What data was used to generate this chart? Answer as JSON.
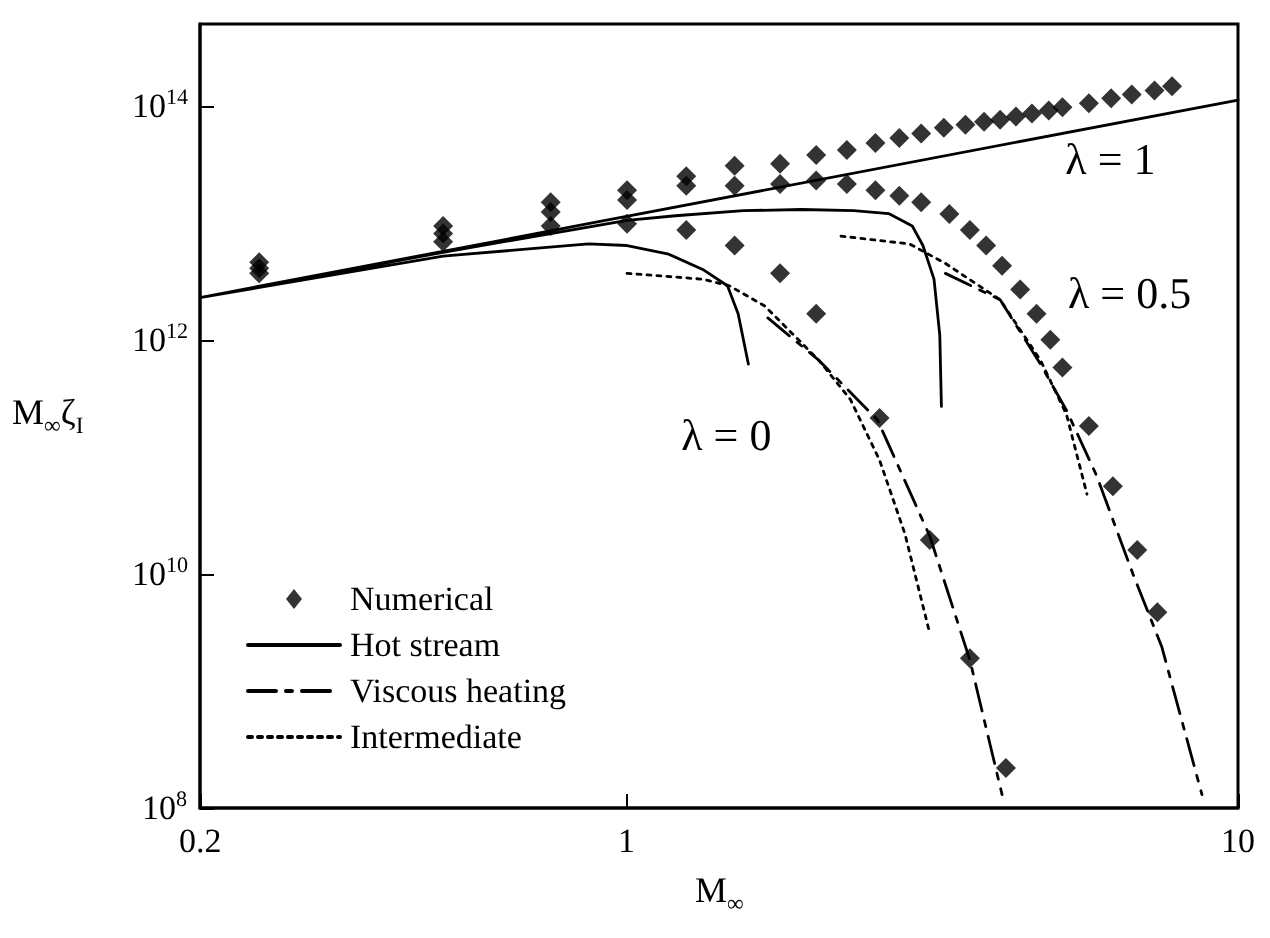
{
  "chart_data": {
    "type": "line",
    "xlabel": "M$_{∞}$",
    "ylabel": "M$_{∞}$ζ$_{I}$",
    "log": "xy",
    "grid": false,
    "legend": "bottom left",
    "xlim": [
      0.2,
      10
    ],
    "xticks": [
      0.2,
      1,
      10
    ],
    "ylim": [
      100000000.0,
      500000000000000.0
    ],
    "yticks": [
      {
        "value": 100000000.0,
        "label": "10$^{8}$"
      },
      {
        "value": 10000000000.0,
        "label": "10$^{10}$"
      },
      {
        "value": 1000000000000.0,
        "label": "10$^{12}$"
      },
      {
        "value": 100000000000000.0,
        "label": "10$^{14}$"
      }
    ],
    "series": [
      {
        "name": "Numerical",
        "type": "scatter",
        "marker": "diamond",
        "color": "#000000",
        "x": [
          0.25,
          0.25,
          0.25,
          0.5,
          0.5,
          0.5,
          0.75,
          0.75,
          0.75,
          1,
          1,
          1,
          1.25,
          1.25,
          1.25,
          1.5,
          1.5,
          1.5,
          1.78,
          2.04,
          2.29,
          2.55,
          2.79,
          3.03,
          3.3,
          3.58,
          3.84,
          4.08,
          4.33,
          4.6,
          4.9,
          5.16,
          5.7,
          6.2,
          6.7,
          7.3,
          7.8,
          1.78,
          2.04,
          2.29,
          2.55,
          2.79,
          3.03,
          3.37,
          3.64,
          3.87,
          4.11,
          4.4,
          4.68,
          4.93,
          5.16,
          5.7,
          6.24,
          6.84,
          7.38,
          1.78,
          2.04,
          2.59,
          3.13,
          3.64,
          4.17
        ],
        "values": [
          4600000000000.0,
          4100000000000.0,
          3700000000000.0,
          9400000000000.0,
          8100000000000.0,
          6900000000000.0,
          15000000000000.0,
          12400000000000.0,
          9400000000000.0,
          19000000000000.0,
          15700000000000.0,
          9800000000000.0,
          25000000000000.0,
          20700000000000.0,
          8700000000000.0,
          30700000000000.0,
          20700000000000.0,
          6400000000000.0,
          32000000000000.0,
          38000000000000.0,
          42000000000000.0,
          48000000000000.0,
          53000000000000.0,
          58000000000000.0,
          65000000000000.0,
          69000000000000.0,
          73000000000000.0,
          76000000000000.0,
          81000000000000.0,
          86000000000000.0,
          91000000000000.0,
          97000000000000.0,
          105000000000000.0,
          116000000000000.0,
          125000000000000.0,
          135000000000000.0,
          147000000000000.0,
          21500000000000.0,
          23000000000000.0,
          21500000000000.0,
          19000000000000.0,
          17000000000000.0,
          15000000000000.0,
          11900000000000.0,
          8700000000000.0,
          6400000000000.0,
          4300000000000.0,
          2700000000000.0,
          1670000000000.0,
          1000000000000.0,
          580000000000.0,
          184000000000.0,
          56000000000.0,
          16000000000.0,
          4700000000.0,
          3700000000000.0,
          1670000000000.0,
          215000000000.0,
          19500000000.0,
          1900000000.0,
          220000000.0
        ]
      },
      {
        "name": "Hot stream",
        "line_style": "solid",
        "color": "#000000",
        "x": [
          0.2,
          10,
          null,
          0.2,
          0.5,
          1,
          1.2,
          1.55,
          1.93,
          2.35,
          2.68,
          2.93,
          3.05,
          3.18,
          3.25,
          3.27,
          null,
          0.2,
          0.5,
          0.865,
          1,
          1.17,
          1.33,
          1.46,
          1.52,
          1.58
        ],
        "values": [
          2300000000000.0,
          112000000000000.0,
          null,
          2300000000000.0,
          5600000000000.0,
          10500000000000.0,
          11500000000000.0,
          12700000000000.0,
          13000000000000.0,
          12700000000000.0,
          12000000000000.0,
          9400000000000.0,
          6400000000000.0,
          3300000000000.0,
          1100000000000.0,
          270000000000.0,
          null,
          2300000000000.0,
          5200000000000.0,
          6600000000000.0,
          6400000000000.0,
          5400000000000.0,
          4000000000000.0,
          2900000000000.0,
          1670000000000.0,
          620000000000.0
        ]
      },
      {
        "name": "Viscous heating",
        "line_style": "dashed",
        "color": "#000000",
        "x": [
          1.7,
          2.06,
          2.27,
          2.57,
          3.13,
          3.64,
          4.11,
          null,
          3.32,
          4.08,
          4.75,
          5.24,
          5.87,
          6.73,
          7.5,
          8.73
        ],
        "values": [
          1540000000000.0,
          670000000000.0,
          400000000000.0,
          207000000000.0,
          21000000000.0,
          1840000000.0,
          130000000.0,
          null,
          3700000000000.0,
          2200000000000.0,
          620000000000.0,
          250000000000.0,
          69000000000.0,
          10000000000.0,
          2400000000.0,
          130000000.0
        ]
      },
      {
        "name": "Intermediate",
        "line_style": "dotted",
        "color": "#000000",
        "x": [
          1,
          1.33,
          1.47,
          1.68,
          2.06,
          2.32,
          2.59,
          2.85,
          3.13,
          null,
          2.24,
          2.9,
          3.32,
          4.08,
          4.75,
          5.24,
          5.66
        ],
        "values": [
          3700000000000.0,
          3300000000000.0,
          2900000000000.0,
          1950000000000.0,
          670000000000.0,
          310000000000.0,
          94000000000.0,
          22000000000.0,
          3100000000.0,
          null,
          7700000000000.0,
          6600000000000.0,
          4500000000000.0,
          2200000000000.0,
          670000000000.0,
          230000000000.0,
          48000000000.0
        ]
      }
    ],
    "annotations": [
      "λ = 1",
      "λ = 0.5",
      "λ = 0"
    ]
  }
}
